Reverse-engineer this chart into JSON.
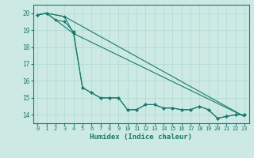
{
  "title": "",
  "xlabel": "Humidex (Indice chaleur)",
  "ylabel": "",
  "bg_color": "#cce9e4",
  "line_color": "#1a7a6e",
  "grid_color": "#b0d8d2",
  "xlim": [
    -0.5,
    23.5
  ],
  "ylim": [
    13.5,
    20.5
  ],
  "yticks": [
    14,
    15,
    16,
    17,
    18,
    19,
    20
  ],
  "xticks": [
    0,
    1,
    2,
    3,
    4,
    5,
    6,
    7,
    8,
    9,
    10,
    11,
    12,
    13,
    14,
    15,
    16,
    17,
    18,
    19,
    20,
    21,
    22,
    23
  ],
  "series1_x": [
    0,
    1,
    2,
    3,
    4,
    5,
    6,
    7,
    8,
    9,
    10,
    11,
    12,
    13,
    14,
    15,
    16,
    17,
    18,
    19,
    20,
    21,
    22,
    23
  ],
  "series1_y": [
    19.9,
    20.0,
    19.6,
    19.5,
    18.9,
    15.6,
    15.3,
    15.0,
    15.0,
    15.0,
    14.3,
    14.3,
    14.6,
    14.6,
    14.4,
    14.4,
    14.3,
    14.3,
    14.5,
    14.3,
    13.8,
    13.9,
    14.0,
    14.0
  ],
  "series2_x": [
    0,
    1,
    3,
    4,
    5,
    6,
    7,
    8,
    9,
    10,
    11,
    12,
    13,
    14,
    15,
    16,
    17,
    18,
    19,
    20,
    21,
    22,
    23
  ],
  "series2_y": [
    19.9,
    20.0,
    19.8,
    18.8,
    15.6,
    15.3,
    15.0,
    15.0,
    15.0,
    14.3,
    14.3,
    14.6,
    14.6,
    14.4,
    14.4,
    14.3,
    14.3,
    14.5,
    14.3,
    13.8,
    13.9,
    14.0,
    14.0
  ],
  "series3_x": [
    0,
    1,
    3,
    23
  ],
  "series3_y": [
    19.9,
    20.0,
    19.8,
    13.9
  ],
  "series4_x": [
    0,
    1,
    4,
    23
  ],
  "series4_y": [
    19.9,
    20.0,
    18.8,
    13.9
  ]
}
